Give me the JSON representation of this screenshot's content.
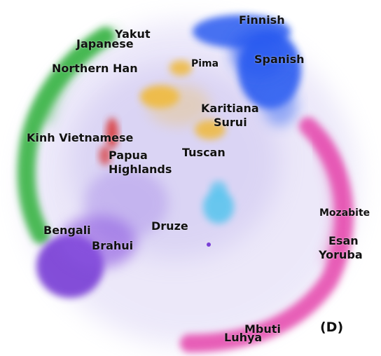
{
  "figure": {
    "panel_label": "(D)",
    "colors": {
      "blue": "#2a5bf0",
      "green": "#3cb54a",
      "magenta": "#e64fb0",
      "purple": "#7a3fd6",
      "gold": "#f0b93a",
      "red": "#d93434",
      "cyan": "#55c4ee",
      "lavender_haze": "#b9a9ec"
    }
  },
  "labels": {
    "finnish": "Finnish",
    "yakut": "Yakut",
    "japanese": "Japanese",
    "pima": "Pima",
    "spanish": "Spanish",
    "northern_han": "Northern Han",
    "karitiana": "Karitiana",
    "surui": "Surui",
    "kinh_vietnamese": "Kinh Vietnamese",
    "papua": "Papua",
    "highlands": "Highlands",
    "tuscan": "Tuscan",
    "mozabite": "Mozabite",
    "bengali": "Bengali",
    "druze": "Druze",
    "esan": "Esan",
    "brahui": "Brahui",
    "yoruba": "Yoruba",
    "mbuti": "Mbuti",
    "luhya": "Luhya"
  }
}
